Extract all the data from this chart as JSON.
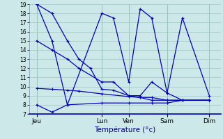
{
  "xlabel": "Température (°c)",
  "background_color": "#cce8e8",
  "grid_color": "#a0c8c8",
  "line_color": "#0000bb",
  "ylim": [
    7,
    19
  ],
  "yticks": [
    7,
    8,
    9,
    10,
    11,
    12,
    13,
    14,
    15,
    16,
    17,
    18,
    19
  ],
  "xlim": [
    0,
    1
  ],
  "day_positions": [
    0.04,
    0.38,
    0.52,
    0.72,
    0.94
  ],
  "day_labels": [
    "Jeu",
    "Lun",
    "Ven",
    "Sam",
    "Dim"
  ],
  "series": [
    {
      "x": [
        0.04,
        0.12,
        0.2,
        0.38,
        0.44,
        0.52,
        0.58,
        0.64,
        0.72,
        0.8,
        0.94
      ],
      "y": [
        19,
        15,
        8,
        18,
        17.5,
        10.5,
        18.5,
        17.5,
        9.3,
        17.5,
        9.0
      ]
    },
    {
      "x": [
        0.04,
        0.12,
        0.2,
        0.26,
        0.32,
        0.38,
        0.44,
        0.52,
        0.58,
        0.64,
        0.72,
        0.8,
        0.94
      ],
      "y": [
        19,
        18,
        15,
        13,
        12,
        9.7,
        9.6,
        9.0,
        9.0,
        10.5,
        9.3,
        8.5,
        8.5
      ]
    },
    {
      "x": [
        0.04,
        0.12,
        0.2,
        0.26,
        0.38,
        0.44,
        0.52,
        0.58,
        0.64,
        0.72,
        0.8,
        0.94
      ],
      "y": [
        15,
        14,
        13,
        12,
        10.5,
        10.5,
        9.0,
        8.8,
        8.5,
        8.5,
        8.5,
        8.5
      ]
    },
    {
      "x": [
        0.04,
        0.12,
        0.2,
        0.26,
        0.38,
        0.52,
        0.58,
        0.64,
        0.72,
        0.8,
        0.94
      ],
      "y": [
        9.8,
        9.7,
        9.6,
        9.5,
        9.2,
        8.9,
        8.8,
        8.8,
        8.5,
        8.5,
        8.5
      ]
    },
    {
      "x": [
        0.04,
        0.12,
        0.2,
        0.38,
        0.52,
        0.64,
        0.72,
        0.8,
        0.94
      ],
      "y": [
        8.0,
        7.2,
        8.0,
        8.2,
        8.2,
        8.2,
        8.2,
        8.5,
        8.5
      ]
    }
  ]
}
